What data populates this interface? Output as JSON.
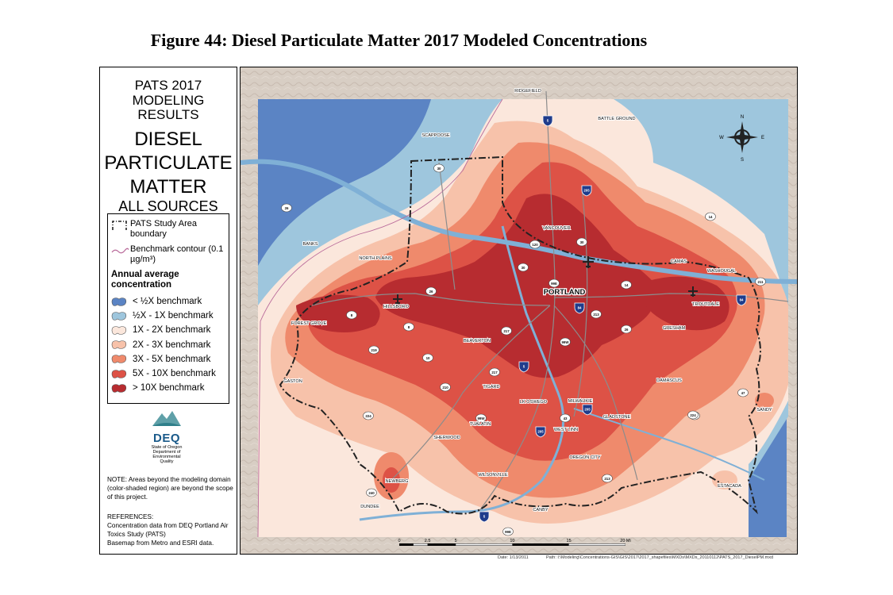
{
  "figure_title": "Figure 44: Diesel Particulate Matter 2017 Modeled Concentrations",
  "legend_panel": {
    "title_line1": "PATS 2017",
    "title_line2": "MODELING RESULTS",
    "title_line3a": "DIESEL",
    "title_line3b": "PARTICULATE",
    "title_line3c": "MATTER",
    "title_line4": "ALL SOURCES",
    "study_area_label": "PATS Study Area boundary",
    "benchmark_label": "Benchmark contour (0.1 µg/m³)",
    "concentration_heading": "Annual average concentration",
    "classes": [
      {
        "label": "< ½X benchmark",
        "color": "#5b84c4"
      },
      {
        "label": "½X - 1X benchmark",
        "color": "#9ec6dd"
      },
      {
        "label": "1X - 2X benchmark",
        "color": "#fbe7dc"
      },
      {
        "label": "2X - 3X benchmark",
        "color": "#f7c2aa"
      },
      {
        "label": "3X - 5X benchmark",
        "color": "#ef8a6c"
      },
      {
        "label": "5X - 10X benchmark",
        "color": "#dd5246"
      },
      {
        "label": "> 10X benchmark",
        "color": "#b72c30"
      }
    ],
    "logo_text": "DEQ",
    "logo_sub1": "State of Oregon",
    "logo_sub2": "Department of",
    "logo_sub3": "Environmental",
    "logo_sub4": "Quality",
    "note": "NOTE: Areas beyond the modeling domain (color-shaded region) are beyond the scope of this project.",
    "references_heading": "REFERENCES:",
    "references_1": "Concentration data from DEQ Portland Air Toxics Study (PATS)",
    "references_2": "Basemap from Metro and ESRI data."
  },
  "map": {
    "colors": {
      "terrain": "#d6cbc1",
      "water": "#7fb0d6",
      "boundary": "#222222",
      "highway": "#8c8c8c",
      "shield_interstate": "#1f3c8c",
      "shield_state": "#ffffff"
    },
    "place_labels": [
      {
        "text": "RIDGEFIELD"
      },
      {
        "text": "BATTLE GROUND"
      },
      {
        "text": "SCAPPOOSE"
      },
      {
        "text": "VANCOUVER"
      },
      {
        "text": "BANKS"
      },
      {
        "text": "NORTH PLAINS"
      },
      {
        "text": "CAMAS"
      },
      {
        "text": "WASHOUGAL"
      },
      {
        "text": "PORTLAND"
      },
      {
        "text": "HILLSBORO"
      },
      {
        "text": "TROUTDALE"
      },
      {
        "text": "FOREST GROVE"
      },
      {
        "text": "BEAVERTON"
      },
      {
        "text": "GRESHAM"
      },
      {
        "text": "GASTON"
      },
      {
        "text": "TIGARD"
      },
      {
        "text": "DAMASCUS"
      },
      {
        "text": "LK OSWEGO"
      },
      {
        "text": "MILWAUKIE"
      },
      {
        "text": "TUALATIN"
      },
      {
        "text": "GLADSTONE"
      },
      {
        "text": "SANDY"
      },
      {
        "text": "WEST LINN"
      },
      {
        "text": "SHERWOOD"
      },
      {
        "text": "OREGON CITY"
      },
      {
        "text": "WILSONVILLE"
      },
      {
        "text": "NEWBERG"
      },
      {
        "text": "ESTACADA"
      },
      {
        "text": "DUNDEE"
      },
      {
        "text": "CANBY"
      }
    ],
    "shields": [
      {
        "num": "5",
        "type": "interstate"
      },
      {
        "num": "205",
        "type": "interstate"
      },
      {
        "num": "30",
        "type": "state"
      },
      {
        "num": "26",
        "type": "state"
      },
      {
        "num": "14",
        "type": "state"
      },
      {
        "num": "120",
        "type": "state"
      },
      {
        "num": "30",
        "type": "state"
      },
      {
        "num": "30",
        "type": "state"
      },
      {
        "num": "14",
        "type": "state"
      },
      {
        "num": "26",
        "type": "state"
      },
      {
        "num": "99E",
        "type": "state"
      },
      {
        "num": "84",
        "type": "interstate"
      },
      {
        "num": "84",
        "type": "interstate"
      },
      {
        "num": "8",
        "type": "state"
      },
      {
        "num": "8",
        "type": "state"
      },
      {
        "num": "213",
        "type": "state"
      },
      {
        "num": "217",
        "type": "state"
      },
      {
        "num": "99W",
        "type": "state"
      },
      {
        "num": "26",
        "type": "state"
      },
      {
        "num": "219",
        "type": "state"
      },
      {
        "num": "10",
        "type": "state"
      },
      {
        "num": "5",
        "type": "interstate"
      },
      {
        "num": "217",
        "type": "state"
      },
      {
        "num": "210",
        "type": "state"
      },
      {
        "num": "47",
        "type": "state"
      },
      {
        "num": "26",
        "type": "state"
      },
      {
        "num": "224",
        "type": "state"
      },
      {
        "num": "99W",
        "type": "state"
      },
      {
        "num": "43",
        "type": "state"
      },
      {
        "num": "224",
        "type": "state"
      },
      {
        "num": "205",
        "type": "interstate"
      },
      {
        "num": "205",
        "type": "interstate"
      },
      {
        "num": "213",
        "type": "state"
      },
      {
        "num": "240",
        "type": "state"
      },
      {
        "num": "5",
        "type": "interstate"
      },
      {
        "num": "99E",
        "type": "state"
      },
      {
        "num": "211",
        "type": "state"
      }
    ],
    "scale_bar": {
      "ticks": [
        "0",
        "2.5",
        "5",
        "10",
        "15",
        "20 Mi"
      ]
    },
    "compass": {
      "n": "N",
      "s": "S",
      "e": "E",
      "w": "W"
    }
  },
  "footer": {
    "date": "Date: 1/13/2011",
    "path": "Path: I:\\Modeling\\Concentrations-GIS\\GIS\\2017\\2017_shapefiles\\MXDs\\MXDs_20110112\\PATS_2017_DieselPM.mxd"
  }
}
